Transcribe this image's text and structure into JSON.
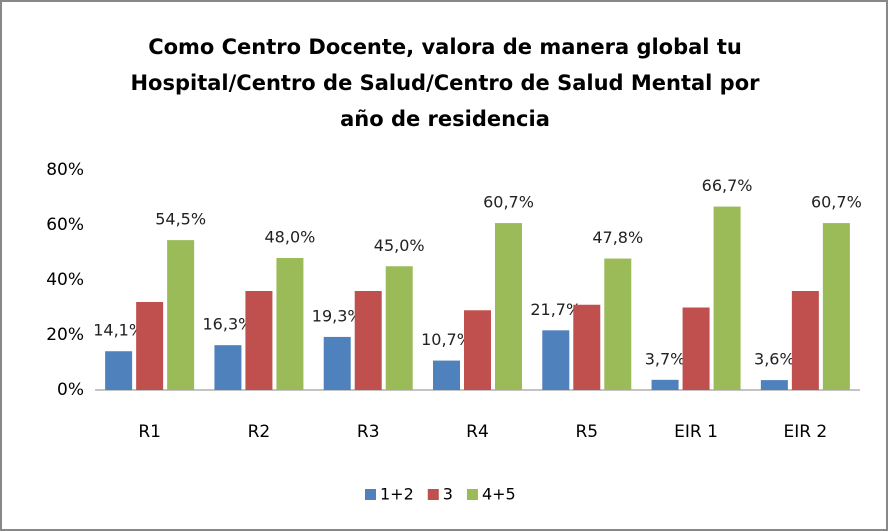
{
  "chart_data": {
    "type": "bar",
    "title": [
      "Como Centro Docente, valora de manera global tu",
      "Hospital/Centro de Salud/Centro de Salud Mental por",
      "año de residencia"
    ],
    "categories": [
      "R1",
      "R2",
      "R3",
      "R4",
      "R5",
      "EIR 1",
      "EIR 2"
    ],
    "series": [
      {
        "name": "1+2",
        "color": "#4f81bd",
        "values": [
          14.1,
          16.3,
          19.3,
          10.7,
          21.7,
          3.7,
          3.6
        ],
        "value_labels": [
          "14,1%",
          "16,3%",
          "19,3%",
          "10,7%",
          "21,7%",
          "3,7%",
          "3,6%"
        ]
      },
      {
        "name": "3",
        "color": "#c0504d",
        "values": [
          32,
          36,
          36,
          29,
          31,
          30,
          36
        ]
      },
      {
        "name": "4+5",
        "color": "#9bbb59",
        "values": [
          54.5,
          48.0,
          45.0,
          60.7,
          47.8,
          66.7,
          60.7
        ],
        "value_labels": [
          "54,5%",
          "48,0%",
          "45,0%",
          "60,7%",
          "47,8%",
          "66,7%",
          "60,7%"
        ]
      }
    ],
    "ylim": [
      0,
      80
    ],
    "yticks": [
      {
        "value": 0,
        "label": "0%"
      },
      {
        "value": 20,
        "label": "20%"
      },
      {
        "value": 40,
        "label": "40%"
      },
      {
        "value": 60,
        "label": "60%"
      },
      {
        "value": 80,
        "label": "80%"
      }
    ],
    "legend": "bottom"
  }
}
